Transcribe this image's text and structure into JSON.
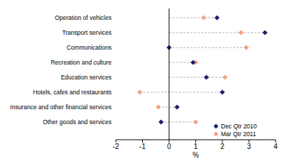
{
  "chart_data": {
    "type": "dot",
    "orientation": "horizontal",
    "categories": [
      "Operation of vehicles",
      "Transport services",
      "Communications",
      "Recreation and culture",
      "Education services",
      "Hotels, cafes and restaurants",
      "Insurance and other financial services",
      "Other goods and services"
    ],
    "series": [
      {
        "name": "Dec Qtr 2010",
        "color": "#1a1f6b",
        "marker": "diamond",
        "values": [
          1.8,
          3.6,
          0.0,
          0.9,
          1.4,
          2.0,
          0.3,
          -0.3
        ]
      },
      {
        "name": "Mar Qtr 2011",
        "color": "#f4a07e",
        "marker": "diamond",
        "values": [
          1.3,
          2.7,
          2.9,
          1.0,
          2.1,
          -1.1,
          -0.4,
          1.0
        ]
      }
    ],
    "xlabel": "%",
    "xlim": [
      -2,
      4
    ],
    "xticks": [
      -2,
      -1,
      0,
      1,
      2,
      3,
      4
    ],
    "grid": false,
    "legend": "bottom-right"
  }
}
